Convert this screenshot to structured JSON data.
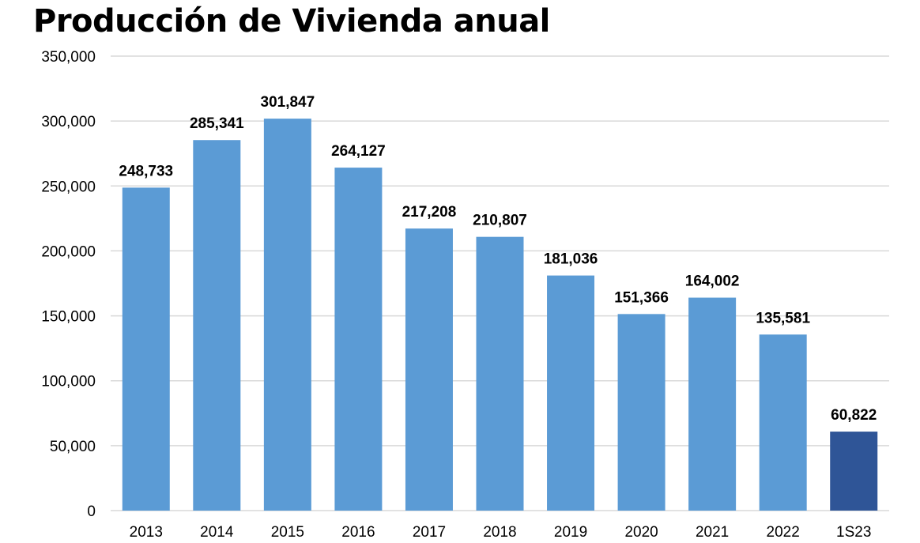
{
  "chart_data": {
    "type": "bar",
    "title": "Producción de Vivienda anual",
    "xlabel": "",
    "ylabel": "",
    "categories": [
      "2013",
      "2014",
      "2015",
      "2016",
      "2017",
      "2018",
      "2019",
      "2020",
      "2021",
      "2022",
      "1S23"
    ],
    "values": [
      248733,
      285341,
      301847,
      264127,
      217208,
      210807,
      181036,
      151366,
      164002,
      135581,
      60822
    ],
    "data_labels": [
      "248,733",
      "285,341",
      "301,847",
      "264,127",
      "217,208",
      "210,807",
      "181,036",
      "151,366",
      "164,002",
      "135,581",
      "60,822"
    ],
    "ylim": [
      0,
      350000
    ],
    "yticks": [
      0,
      50000,
      100000,
      150000,
      200000,
      250000,
      300000,
      350000
    ],
    "ytick_labels": [
      "0",
      "50,000",
      "100,000",
      "150,000",
      "200,000",
      "250,000",
      "300,000",
      "350,000"
    ],
    "grid": true,
    "legend": "none",
    "colors": {
      "bar": "#5b9bd5",
      "highlight_bar": "#2f5597",
      "gridline": "#d9d9d9"
    },
    "highlight_category": "1S23"
  }
}
